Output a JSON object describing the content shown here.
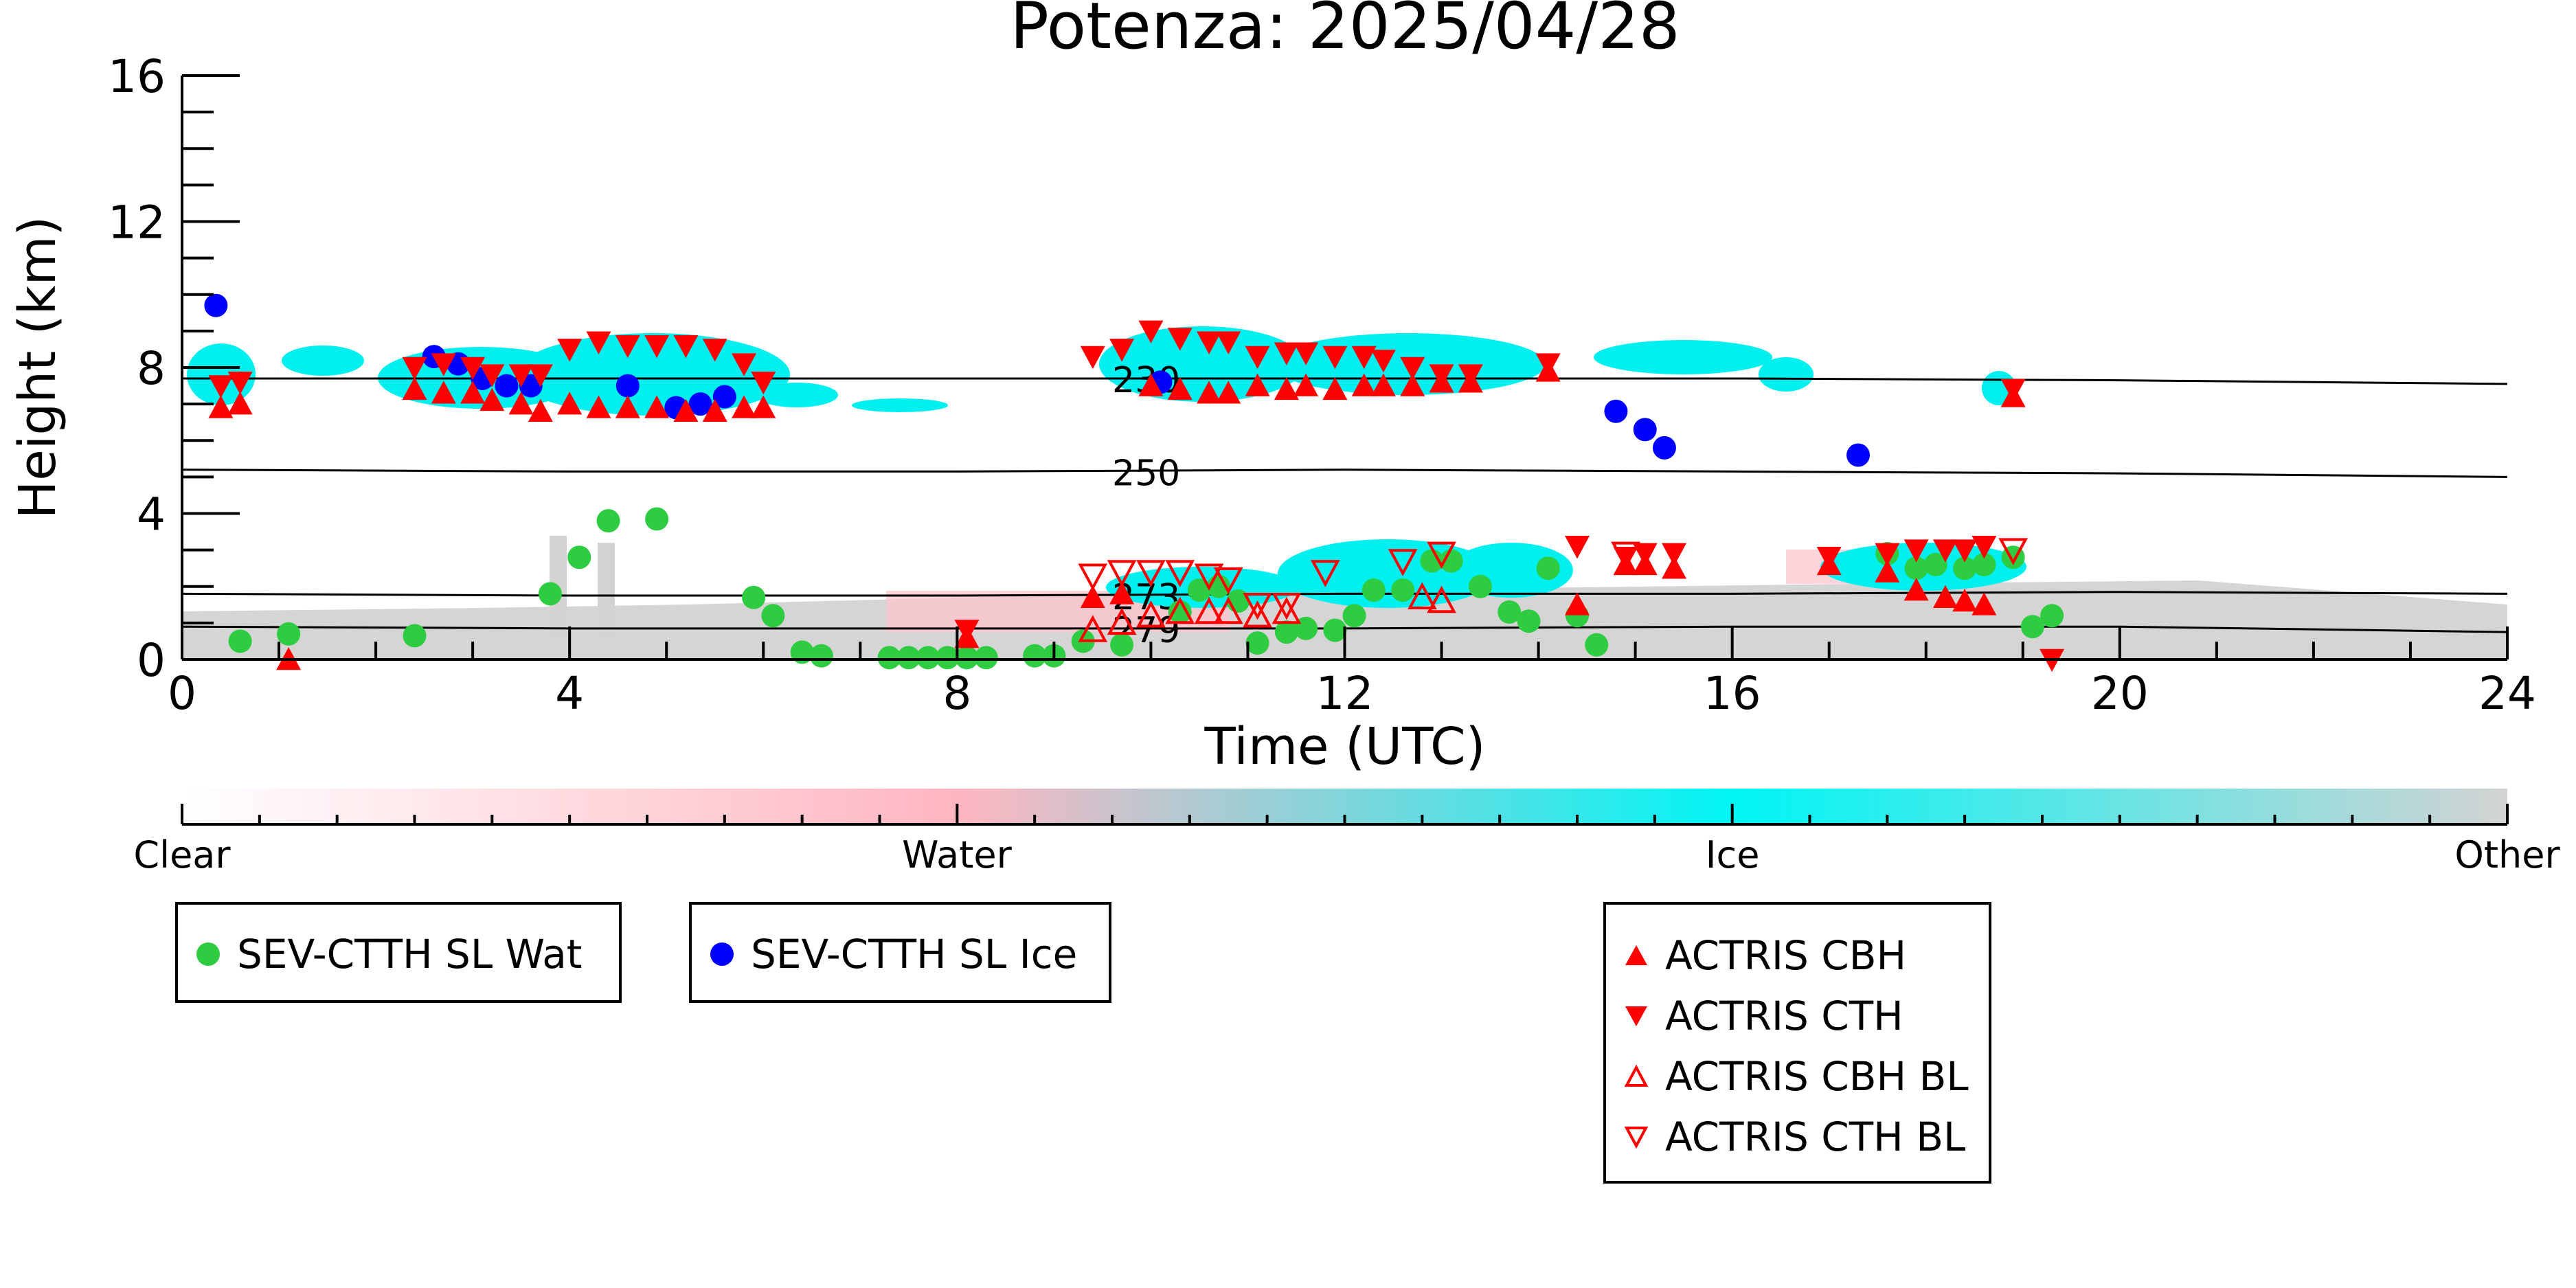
{
  "chart_data": {
    "type": "scatter",
    "title": "Potenza: 2025/04/28",
    "xlabel": "Time (UTC)",
    "ylabel": "Height (km)",
    "xlim": [
      0,
      24
    ],
    "ylim": [
      0,
      16
    ],
    "x_ticks": [
      "0",
      "4",
      "8",
      "12",
      "16",
      "20",
      "24"
    ],
    "y_ticks": [
      "0",
      "4",
      "8",
      "12",
      "16"
    ],
    "grid": false,
    "colorbar": {
      "labels": [
        "Clear",
        "Water",
        "Ice",
        "Other"
      ],
      "colors": [
        "#ffffff",
        "#ffb6c1",
        "#00f5f5",
        "#d3d3d3"
      ]
    },
    "isotherms": [
      {
        "label": "230",
        "x": [
          0,
          4,
          8,
          12,
          16,
          20,
          24
        ],
        "y": [
          7.7,
          7.7,
          7.7,
          7.7,
          7.7,
          7.65,
          7.55
        ]
      },
      {
        "label": "250",
        "x": [
          0,
          4,
          8,
          12,
          16,
          20,
          24
        ],
        "y": [
          5.2,
          5.15,
          5.15,
          5.2,
          5.15,
          5.1,
          5.0
        ]
      },
      {
        "label": "273",
        "x": [
          0,
          4,
          8,
          12,
          16,
          20,
          24
        ],
        "y": [
          1.8,
          1.75,
          1.75,
          1.8,
          1.8,
          1.85,
          1.8
        ]
      },
      {
        "label": "279",
        "x": [
          0,
          4,
          8,
          12,
          16,
          20,
          24
        ],
        "y": [
          0.9,
          0.85,
          0.85,
          0.85,
          0.9,
          0.9,
          0.75
        ]
      }
    ],
    "series": [
      {
        "name": "SEV-CTTH SL Wat",
        "marker": "circle",
        "color": "#2ecc40",
        "x": [
          0.6,
          1.1,
          2.4,
          3.8,
          4.1,
          4.4,
          4.9,
          5.9,
          6.1,
          6.4,
          6.6,
          7.3,
          7.5,
          7.7,
          7.9,
          8.1,
          8.3,
          8.8,
          9.0,
          9.3,
          9.7,
          10.3,
          10.5,
          10.7,
          10.9,
          11.1,
          11.4,
          11.6,
          11.9,
          12.1,
          12.3,
          12.6,
          12.9,
          13.1,
          13.4,
          13.7,
          13.9,
          14.1,
          14.4,
          14.6,
          17.6,
          17.9,
          18.1,
          18.4,
          18.6,
          18.9,
          19.1,
          19.3
        ],
        "y": [
          0.5,
          0.7,
          0.65,
          1.8,
          2.8,
          3.8,
          3.85,
          1.7,
          1.2,
          0.2,
          0.1,
          0.05,
          0.05,
          0.05,
          0.05,
          0.05,
          0.05,
          0.1,
          0.1,
          0.5,
          0.4,
          1.3,
          1.9,
          2.0,
          1.6,
          0.45,
          0.75,
          0.85,
          0.8,
          1.2,
          1.9,
          1.9,
          2.7,
          2.7,
          2.0,
          1.3,
          1.05,
          2.5,
          1.2,
          0.4,
          2.9,
          2.5,
          2.6,
          2.5,
          2.6,
          2.8,
          0.9,
          1.2
        ]
      },
      {
        "name": "SEV-CTTH SL Ice",
        "marker": "circle",
        "color": "#0000ff",
        "x": [
          0.35,
          2.6,
          2.85,
          3.1,
          3.35,
          3.6,
          4.6,
          5.1,
          5.35,
          5.6,
          10.1,
          14.8,
          15.1,
          15.3,
          17.3
        ],
        "y": [
          9.7,
          8.3,
          8.1,
          7.7,
          7.5,
          7.5,
          7.5,
          6.9,
          7.0,
          7.2,
          7.6,
          6.8,
          6.3,
          5.8,
          5.6
        ]
      },
      {
        "name": "ACTRIS CBH",
        "marker": "triangle-up",
        "color": "#ff0000",
        "filled": true,
        "x": [
          0.4,
          0.6,
          1.1,
          2.4,
          2.7,
          3.0,
          3.2,
          3.5,
          3.7,
          4.0,
          4.3,
          4.6,
          4.9,
          5.2,
          5.5,
          5.8,
          6.0,
          8.1,
          9.4,
          9.7,
          10.0,
          10.3,
          10.6,
          10.8,
          11.1,
          11.4,
          11.6,
          11.9,
          12.2,
          12.4,
          12.7,
          13.0,
          13.3,
          14.1,
          14.4,
          14.9,
          15.1,
          15.4,
          17.0,
          17.6,
          17.9,
          18.2,
          18.4,
          18.6,
          18.9
        ],
        "y": [
          6.9,
          7.0,
          0.0,
          7.4,
          7.3,
          7.3,
          7.1,
          7.0,
          6.8,
          7.0,
          6.9,
          6.9,
          6.9,
          6.8,
          6.8,
          6.9,
          6.9,
          0.6,
          1.7,
          1.8,
          7.5,
          7.4,
          7.3,
          7.3,
          7.5,
          7.4,
          7.5,
          7.4,
          7.5,
          7.5,
          7.5,
          7.6,
          7.6,
          7.9,
          1.5,
          2.6,
          2.6,
          2.5,
          2.6,
          2.4,
          1.9,
          1.7,
          1.6,
          1.5,
          7.2
        ]
      },
      {
        "name": "ACTRIS CTH",
        "marker": "triangle-down",
        "color": "#ff0000",
        "filled": true,
        "x": [
          0.4,
          0.6,
          2.4,
          2.7,
          3.0,
          3.2,
          3.5,
          3.7,
          4.0,
          4.3,
          4.6,
          4.9,
          5.2,
          5.5,
          5.8,
          6.0,
          8.1,
          9.4,
          9.7,
          10.0,
          10.3,
          10.6,
          10.8,
          11.1,
          11.4,
          11.6,
          11.9,
          12.2,
          12.4,
          12.7,
          13.0,
          13.3,
          14.1,
          14.4,
          14.9,
          15.1,
          15.4,
          17.0,
          17.6,
          17.9,
          18.2,
          18.4,
          18.6,
          18.9,
          19.3
        ],
        "y": [
          7.5,
          7.6,
          8.0,
          8.1,
          8.0,
          7.8,
          7.8,
          7.8,
          8.5,
          8.7,
          8.6,
          8.6,
          8.6,
          8.5,
          8.1,
          7.6,
          0.8,
          8.3,
          8.5,
          9.0,
          8.8,
          8.7,
          8.7,
          8.3,
          8.4,
          8.4,
          8.3,
          8.3,
          8.2,
          8.0,
          7.8,
          7.8,
          8.1,
          3.1,
          2.8,
          2.9,
          2.9,
          2.8,
          2.9,
          3.0,
          3.0,
          3.0,
          3.1,
          7.4,
          0.0
        ]
      },
      {
        "name": "ACTRIS CBH BL",
        "marker": "triangle-up",
        "color": "#ff0000",
        "filled": false,
        "x": [
          9.4,
          9.7,
          10.0,
          10.3,
          10.6,
          10.8,
          11.1,
          11.4,
          12.8,
          13.0
        ],
        "y": [
          0.8,
          1.0,
          1.2,
          1.3,
          1.3,
          1.3,
          1.2,
          1.3,
          1.7,
          1.6
        ]
      },
      {
        "name": "ACTRIS CTH BL",
        "marker": "triangle-down",
        "color": "#ff0000",
        "filled": false,
        "x": [
          9.4,
          9.7,
          10.0,
          10.3,
          10.6,
          10.8,
          11.1,
          11.4,
          11.8,
          12.6,
          13.0,
          14.9,
          18.9
        ],
        "y": [
          2.3,
          2.4,
          2.4,
          2.4,
          2.3,
          2.2,
          1.5,
          1.5,
          2.4,
          2.7,
          2.9,
          2.9,
          3.0
        ]
      }
    ]
  },
  "legend_groups": [
    [
      "SEV-CTTH SL Wat"
    ],
    [
      "SEV-CTTH SL Ice"
    ],
    [
      "ACTRIS CBH",
      "ACTRIS CTH",
      "ACTRIS CBH BL",
      "ACTRIS CTH BL"
    ]
  ]
}
